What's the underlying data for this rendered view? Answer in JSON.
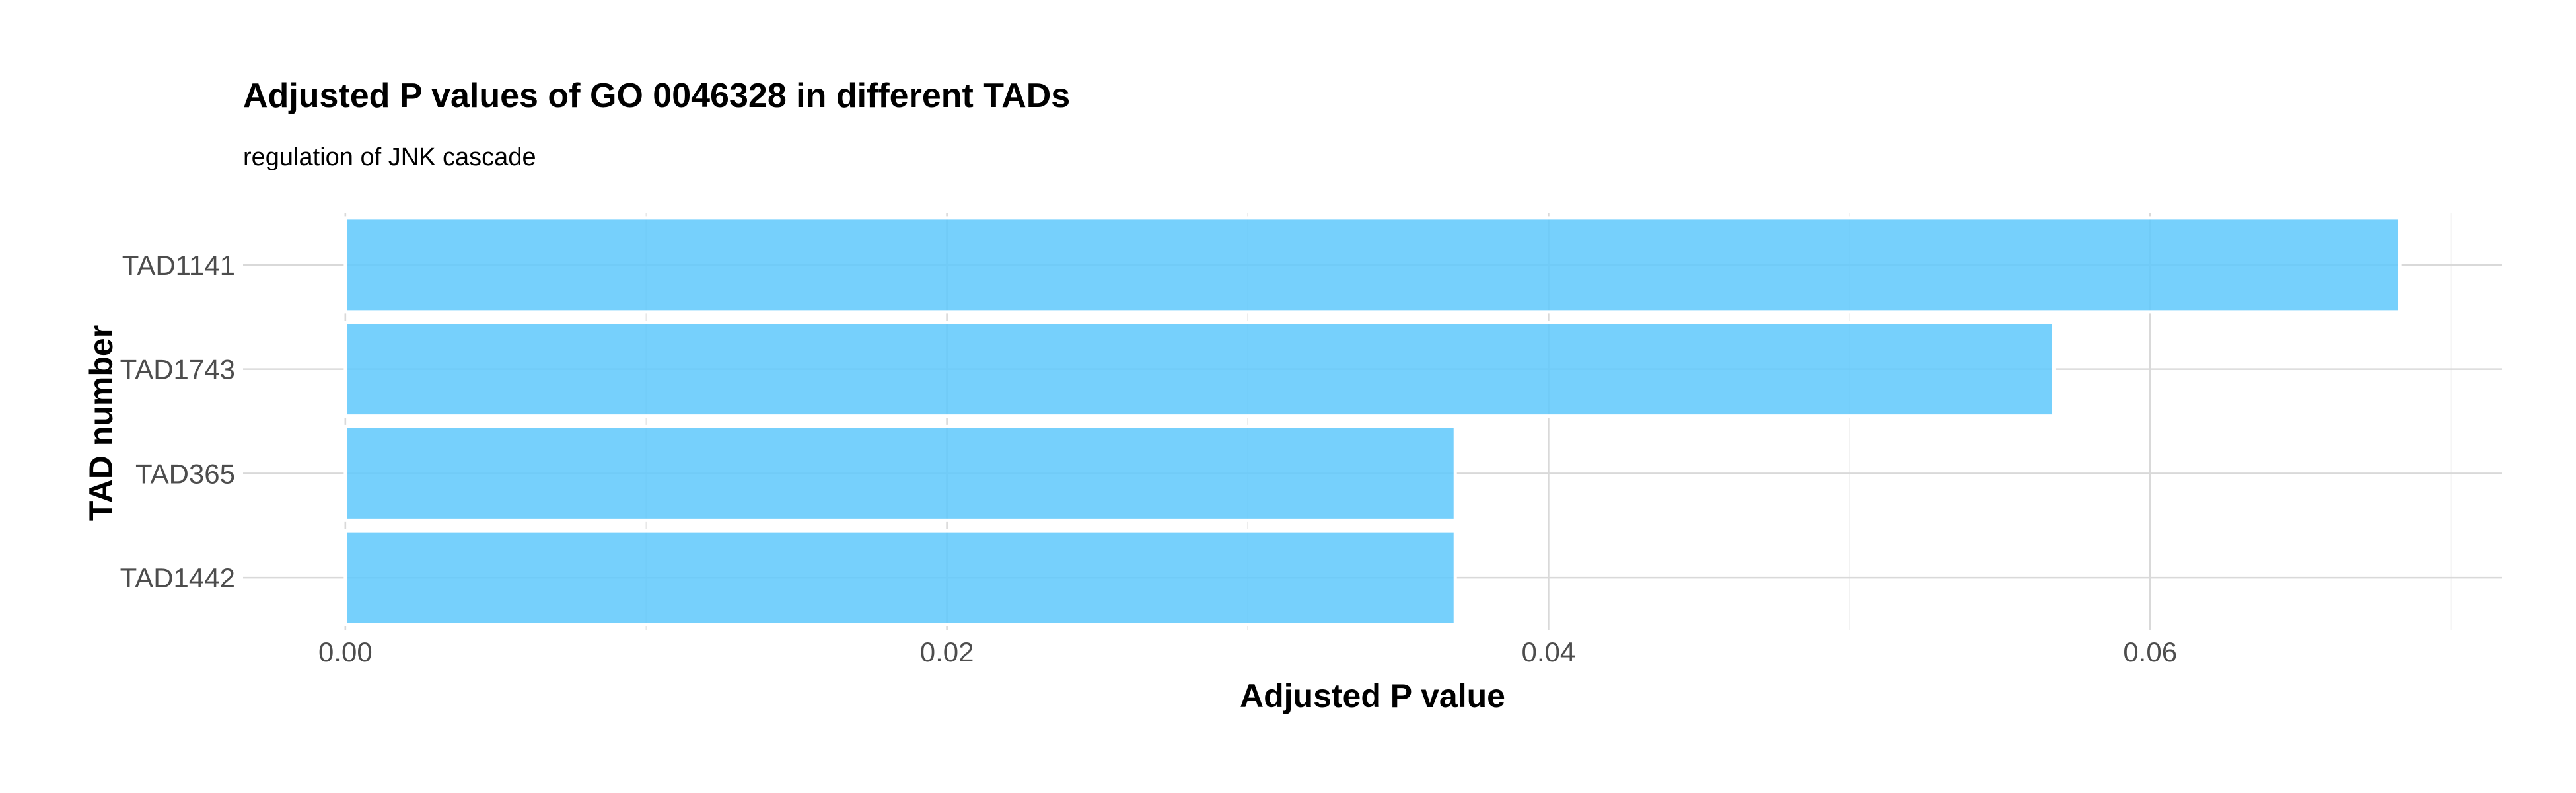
{
  "chart_data": {
    "type": "bar",
    "orientation": "horizontal",
    "title": "Adjusted P values of GO 0046328 in different TADs",
    "subtitle": "regulation of JNK cascade",
    "xlabel": "Adjusted P value",
    "ylabel": "TAD number",
    "categories": [
      "TAD1141",
      "TAD1743",
      "TAD365",
      "TAD1442"
    ],
    "values": [
      0.0683,
      0.0568,
      0.0369,
      0.0369
    ],
    "xlim": [
      -0.0034,
      0.0717
    ],
    "xticks": [
      0.0,
      0.02,
      0.04,
      0.06
    ],
    "xtick_labels": [
      "0.00",
      "0.02",
      "0.04",
      "0.06"
    ],
    "grid": true,
    "legend": "none",
    "bar_color": "#5ec8fb"
  }
}
